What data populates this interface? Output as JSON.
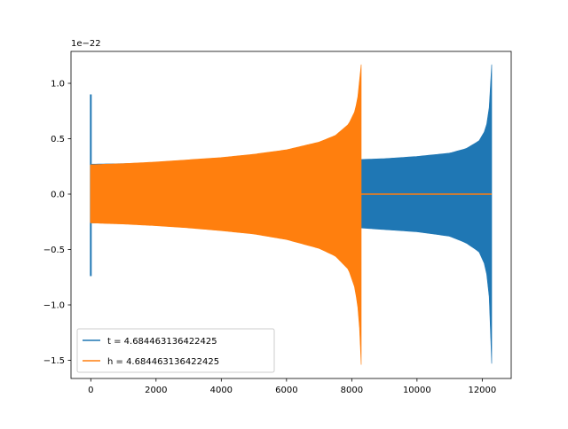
{
  "chart_data": {
    "type": "line",
    "title": "",
    "xlabel": "",
    "ylabel": "",
    "y_offset_label": "1e−22",
    "xlim": [
      -607,
      12888
    ],
    "ylim": [
      -1.664,
      1.288
    ],
    "x_ticks": [
      0,
      2000,
      4000,
      6000,
      8000,
      10000,
      12000
    ],
    "x_tick_labels": [
      "0",
      "2000",
      "4000",
      "6000",
      "8000",
      "10000",
      "12000"
    ],
    "y_ticks": [
      -1.5,
      -1.0,
      -0.5,
      0.0,
      0.5,
      1.0
    ],
    "y_tick_labels": [
      "−1.5",
      "−1.0",
      "−0.5",
      "0.0",
      "0.5",
      "1.0"
    ],
    "grid": false,
    "legend_position": "lower-left",
    "colors": {
      "t": "#1f77b4",
      "h": "#ff7f0e"
    },
    "series": [
      {
        "name": "t = 4.684463136422425",
        "color": "#1f77b4",
        "x": [
          0,
          2000,
          4000,
          6000,
          8000,
          9000,
          10000,
          11000,
          11500,
          11900,
          12100,
          12200,
          12260,
          12290
        ],
        "upper": [
          0.27,
          0.28,
          0.285,
          0.295,
          0.31,
          0.32,
          0.34,
          0.37,
          0.41,
          0.48,
          0.58,
          0.72,
          1.0,
          1.17
        ],
        "lower": [
          -0.26,
          -0.27,
          -0.275,
          -0.285,
          -0.3,
          -0.32,
          -0.34,
          -0.38,
          -0.44,
          -0.52,
          -0.65,
          -0.85,
          -1.2,
          -1.53
        ],
        "spike_x": 0,
        "spike_max": 0.9,
        "spike_min": -0.74
      },
      {
        "name": "h = 4.684463136422425",
        "color": "#ff7f0e",
        "x": [
          0,
          1000,
          2000,
          3000,
          4000,
          5000,
          6000,
          7000,
          7500,
          7900,
          8100,
          8200,
          8260,
          8290
        ],
        "upper": [
          0.265,
          0.275,
          0.29,
          0.31,
          0.33,
          0.36,
          0.4,
          0.47,
          0.53,
          0.63,
          0.75,
          0.9,
          1.1,
          1.17
        ],
        "lower": [
          -0.26,
          -0.27,
          -0.285,
          -0.305,
          -0.33,
          -0.36,
          -0.41,
          -0.49,
          -0.56,
          -0.68,
          -0.85,
          -1.05,
          -1.3,
          -1.54
        ],
        "flat_after": 8290,
        "flat_until": 12290,
        "flat_value": 0.0
      }
    ]
  }
}
